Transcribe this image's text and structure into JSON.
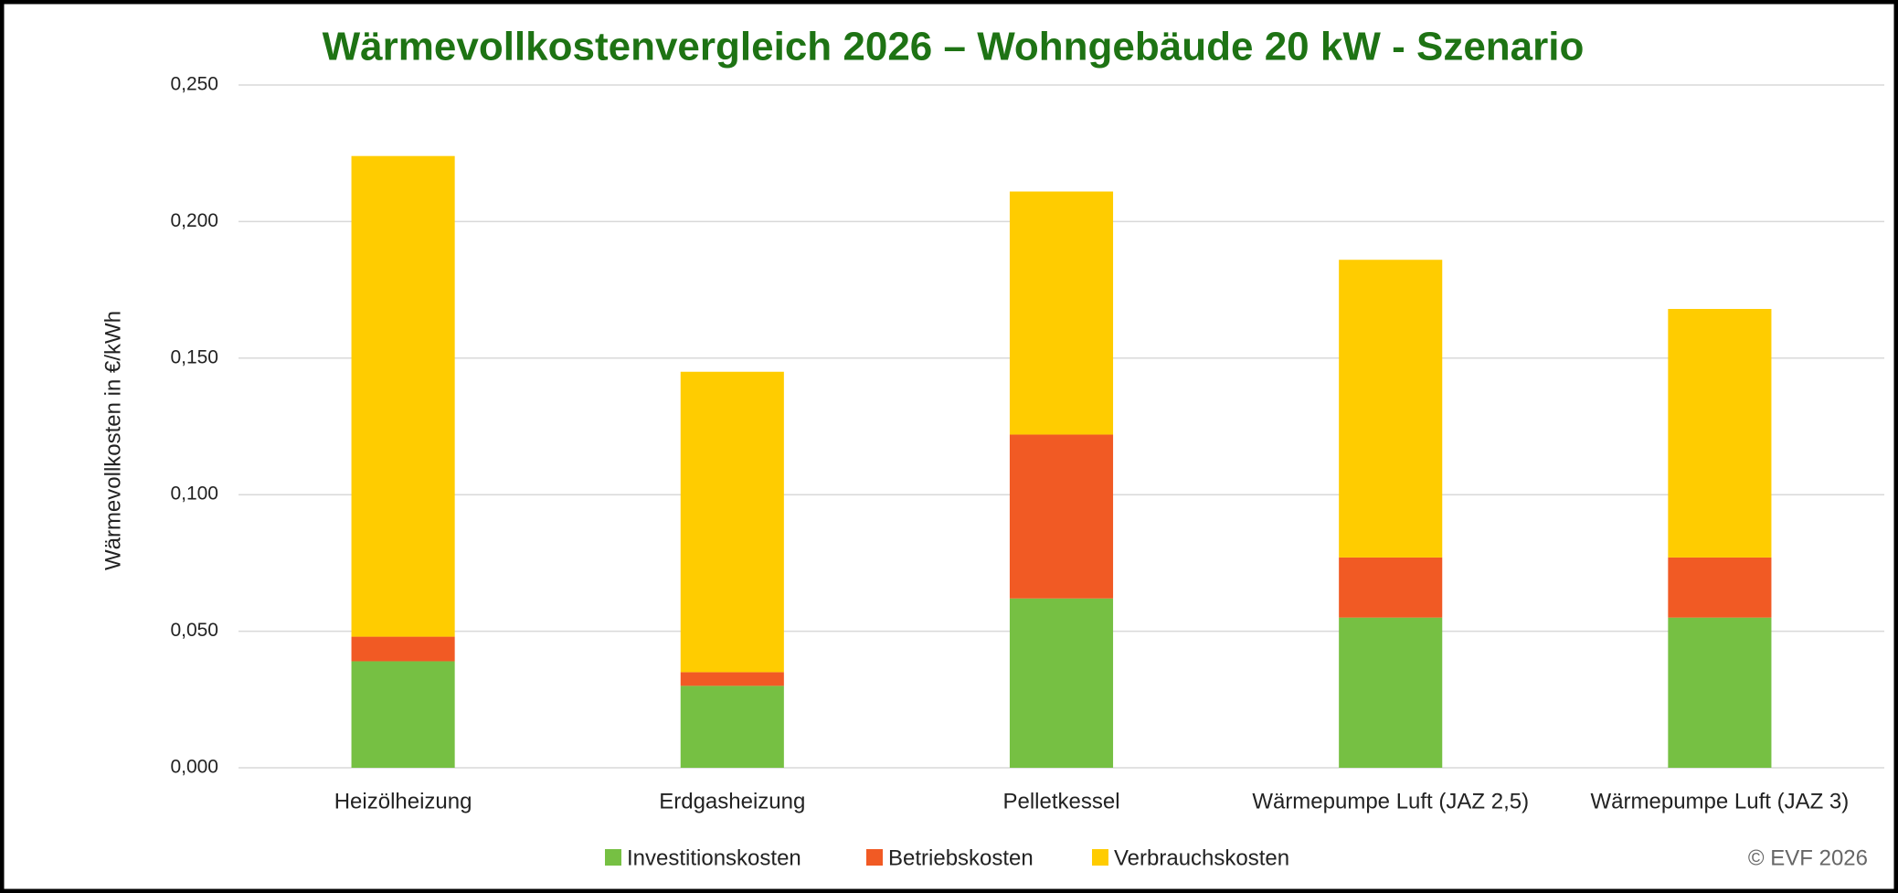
{
  "chart_data": {
    "type": "stacked_bar",
    "title": "Wärmevollkostenvergleich 2026 – Wohngebäude 20 kW - Szenario",
    "y_label": "Wärmevollkosten in €/kWh",
    "note": "© EVF 2026",
    "categories": [
      "Heizölheizung",
      "Erdgasheizung",
      "Pelletkessel",
      "Wärmepumpe Luft (JAZ 2,5)",
      "Wärmepumpe Luft (JAZ 3)"
    ],
    "series": [
      {
        "name": "Investitionskosten",
        "color": "#76c043",
        "values": [
          0.039,
          0.03,
          0.062,
          0.055,
          0.055
        ]
      },
      {
        "name": "Betriebskosten",
        "color": "#f15a24",
        "values": [
          0.009,
          0.005,
          0.06,
          0.022,
          0.022
        ]
      },
      {
        "name": "Verbrauchskosten",
        "color": "#ffcc00",
        "values": [
          0.176,
          0.11,
          0.089,
          0.109,
          0.091
        ]
      }
    ],
    "ylim": [
      0,
      0.25
    ],
    "yticks": [
      {
        "value": 0,
        "label": "0,000"
      },
      {
        "value": 0.05,
        "label": "0,050"
      },
      {
        "value": 0.1,
        "label": "0,100"
      },
      {
        "value": 0.15,
        "label": "0,150"
      },
      {
        "value": 0.2,
        "label": "0,200"
      },
      {
        "value": 0.25,
        "label": "0,250"
      }
    ],
    "grid": true,
    "legend": "bottom"
  }
}
